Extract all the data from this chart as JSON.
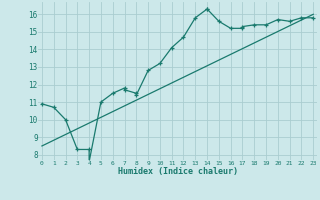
{
  "xlabel": "Humidex (Indice chaleur)",
  "ylabel": "",
  "bg_color": "#cce8ea",
  "grid_color": "#aacdd0",
  "line_color": "#1a7a6e",
  "x_data": [
    0,
    1,
    2,
    3,
    4,
    4,
    5,
    6,
    7,
    7,
    8,
    8,
    9,
    10,
    11,
    12,
    13,
    14,
    14,
    15,
    16,
    17,
    17,
    18,
    19,
    20,
    21,
    22,
    23
  ],
  "y_data": [
    10.9,
    10.7,
    10.0,
    8.3,
    8.3,
    7.6,
    11.0,
    11.5,
    11.8,
    11.7,
    11.5,
    11.4,
    12.8,
    13.2,
    14.1,
    14.7,
    15.8,
    16.3,
    16.3,
    15.6,
    15.2,
    15.2,
    15.3,
    15.4,
    15.4,
    15.7,
    15.6,
    15.8,
    15.8
  ],
  "line2_x": [
    0,
    23
  ],
  "line2_y": [
    8.5,
    16.0
  ],
  "xlim": [
    -0.3,
    23.3
  ],
  "ylim": [
    7.7,
    16.7
  ],
  "yticks": [
    8,
    9,
    10,
    11,
    12,
    13,
    14,
    15,
    16
  ],
  "xticks": [
    0,
    1,
    2,
    3,
    4,
    5,
    6,
    7,
    8,
    9,
    10,
    11,
    12,
    13,
    14,
    15,
    16,
    17,
    18,
    19,
    20,
    21,
    22,
    23
  ],
  "xtick_labels": [
    "0",
    "1",
    "2",
    "3",
    "4",
    "5",
    "6",
    "7",
    "8",
    "9",
    "10",
    "11",
    "12",
    "13",
    "14",
    "15",
    "16",
    "17",
    "18",
    "19",
    "20",
    "21",
    "22",
    "23"
  ]
}
